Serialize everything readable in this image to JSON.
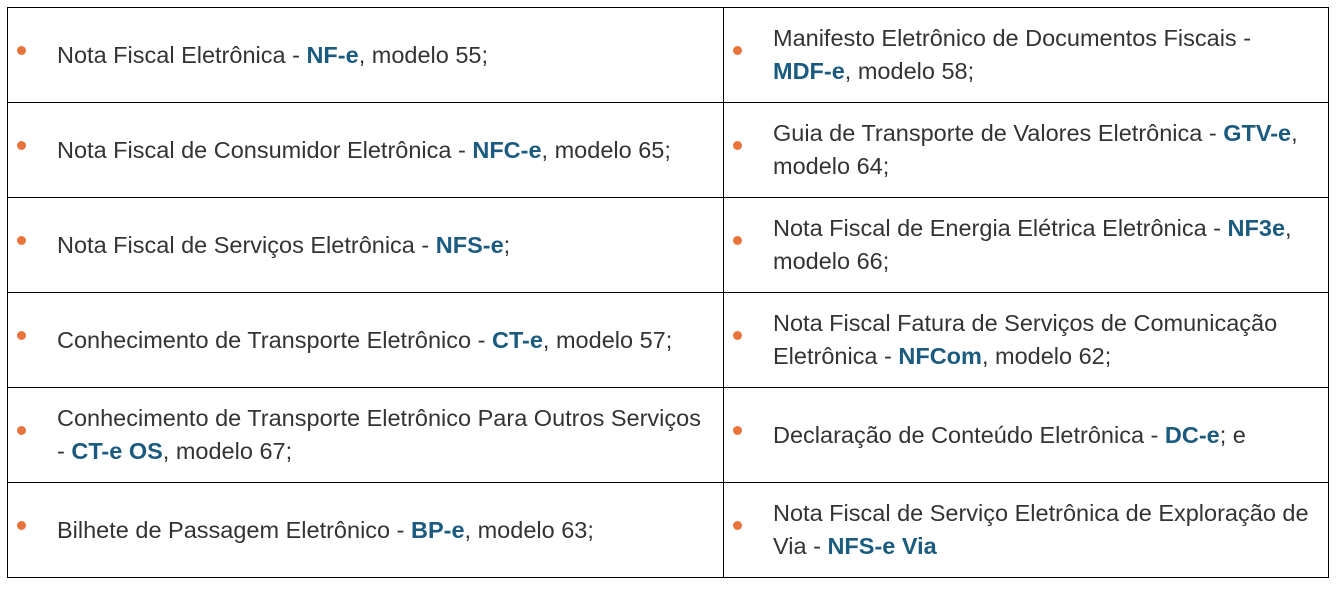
{
  "colors": {
    "bullet": "#e8743b",
    "bold": "#1b5b80",
    "text": "#333333"
  },
  "cells": [
    {
      "pre": "Nota Fiscal Eletrônica - ",
      "bold": "NF-e",
      "post": ", modelo 55;"
    },
    {
      "pre": "Manifesto Eletrônico de Documentos Fiscais - ",
      "bold": "MDF-e",
      "post": ", modelo 58;"
    },
    {
      "pre": "Nota Fiscal de Consumidor Eletrônica - ",
      "bold": "NFC-e",
      "post": ", modelo 65;"
    },
    {
      "pre": "Guia de Transporte de Valores Eletrônica - ",
      "bold": "GTV-e",
      "post": ", modelo 64;"
    },
    {
      "pre": "Nota Fiscal de Serviços Eletrônica - ",
      "bold": "NFS-e",
      "post": ";"
    },
    {
      "pre": "Nota Fiscal de Energia Elétrica Eletrônica - ",
      "bold": "NF3e",
      "post": ", modelo 66;"
    },
    {
      "pre": "Conhecimento de Transporte Eletrônico - ",
      "bold": "CT-e",
      "post": ", modelo 57;"
    },
    {
      "pre": "Nota Fiscal Fatura de Serviços de Comunicação Eletrônica - ",
      "bold": "NFCom",
      "post": ", modelo 62;"
    },
    {
      "pre": "Conhecimento de Transporte Eletrônico Para Outros Serviços - ",
      "bold": "CT-e OS",
      "post": ", modelo 67;"
    },
    {
      "pre": "Declaração de Conteúdo Eletrônica - ",
      "bold": "DC-e",
      "post": "; e"
    },
    {
      "pre": "Bilhete de Passagem Eletrônico - ",
      "bold": "BP-e",
      "post": ", modelo 63;"
    },
    {
      "pre": "Nota Fiscal de Serviço Eletrônica de Exploração de Via - ",
      "bold": "NFS-e Via",
      "post": ""
    }
  ]
}
